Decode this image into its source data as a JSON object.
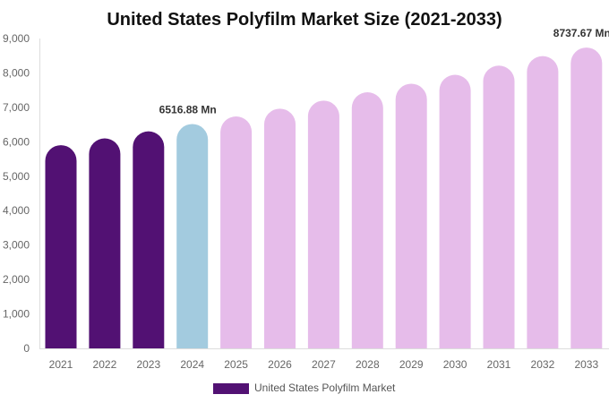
{
  "chart_data": {
    "type": "bar",
    "title": "United States Polyfilm Market Size (2021-2033)",
    "xlabel": "",
    "ylabel": "",
    "ylim": [
      0,
      9000
    ],
    "yticks": [
      "0",
      "1,000",
      "2,000",
      "3,000",
      "4,000",
      "5,000",
      "6,000",
      "7,000",
      "8,000",
      "9,000"
    ],
    "categories": [
      "2021",
      "2022",
      "2023",
      "2024",
      "2025",
      "2026",
      "2027",
      "2028",
      "2029",
      "2030",
      "2031",
      "2032",
      "2033"
    ],
    "series": [
      {
        "name": "United States Polyfilm Market",
        "values": [
          5902,
          6100,
          6305,
          6516.88,
          6736,
          6962,
          7196,
          7438,
          7688,
          7946,
          8213,
          8489,
          8737.67
        ]
      }
    ],
    "data_labels": {
      "2024": "6516.88 Mn",
      "2033": "8737.67 Mn"
    },
    "colors": {
      "historical": "#521173",
      "current": "#a3cbdf",
      "forecast": "#e6bcea"
    },
    "bar_color_groups": [
      "historical",
      "historical",
      "historical",
      "current",
      "forecast",
      "forecast",
      "forecast",
      "forecast",
      "forecast",
      "forecast",
      "forecast",
      "forecast",
      "forecast"
    ],
    "grid": false,
    "legend_placement": "bottom"
  }
}
